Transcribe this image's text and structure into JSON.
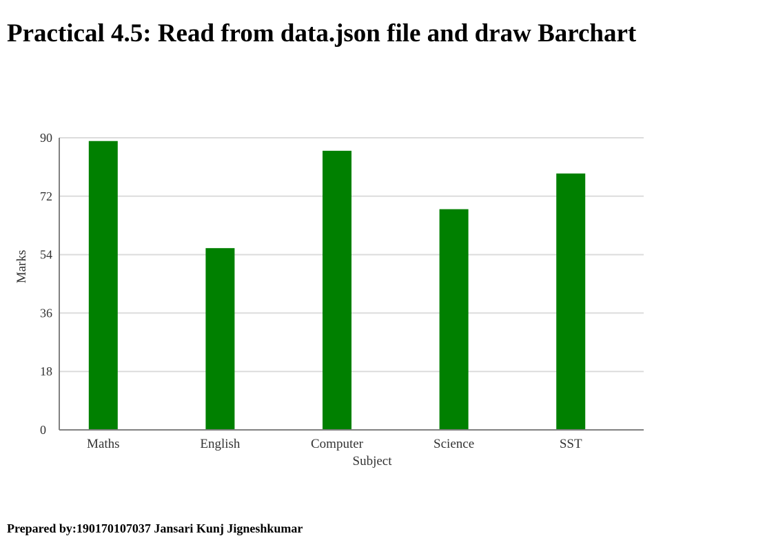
{
  "page": {
    "title": "Practical 4.5: Read from data.json file and draw Barchart",
    "footer": "Prepared by:190170107037 Jansari Kunj Jigneshkumar"
  },
  "chart_data": {
    "type": "bar",
    "categories": [
      "Maths",
      "English",
      "Computer",
      "Science",
      "SST"
    ],
    "series": [
      {
        "values": [
          89,
          56,
          86,
          68,
          79
        ]
      }
    ],
    "xlabel": "Subject",
    "ylabel": "Marks",
    "ylim": [
      0,
      90
    ],
    "yticks": [
      "0",
      "18",
      "36",
      "54",
      "72",
      "90"
    ],
    "grid": true,
    "colors": {
      "bar": "#008000",
      "grid": "#dcdcdc",
      "axis": "#808080"
    }
  }
}
